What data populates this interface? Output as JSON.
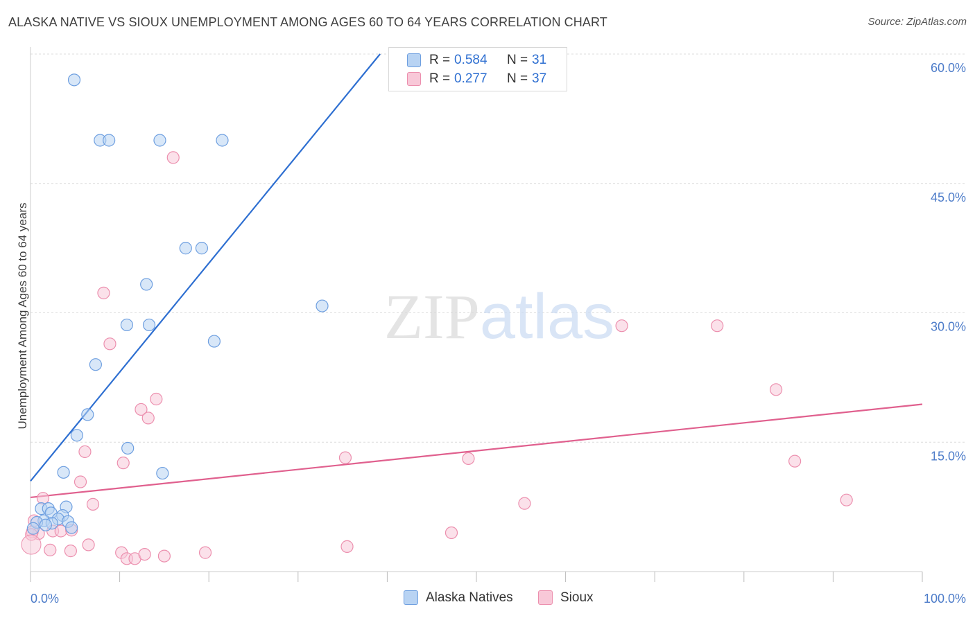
{
  "chart_data": {
    "type": "scatter",
    "title": "ALASKA NATIVE VS SIOUX UNEMPLOYMENT AMONG AGES 60 TO 64 YEARS CORRELATION CHART",
    "source": "Source: ZipAtlas.com",
    "ylabel": "Unemployment Among Ages 60 to 64 years",
    "xlabel": "",
    "xlim": [
      0,
      100
    ],
    "ylim": [
      0,
      60
    ],
    "x_tick_labels": [
      "0.0%",
      "100.0%"
    ],
    "y_tick_labels": [
      {
        "value": 15,
        "label": "15.0%"
      },
      {
        "value": 30,
        "label": "30.0%"
      },
      {
        "value": 45,
        "label": "45.0%"
      },
      {
        "value": 60,
        "label": "60.0%"
      }
    ],
    "watermark": "ZIPatlas",
    "legend": {
      "r_label": "R =",
      "n_label": "N =",
      "entries": [
        {
          "name": "Alaska Natives",
          "r": "0.584",
          "n": "31",
          "fill": "#b8d3f3",
          "stroke": "#6e9fe0",
          "line": "#2e6fd1"
        },
        {
          "name": "Sioux",
          "r": "0.277",
          "n": "37",
          "fill": "#f8c8d8",
          "stroke": "#ec8fae",
          "line": "#e0608e"
        }
      ]
    },
    "series": [
      {
        "name": "Alaska Natives",
        "trend": {
          "x": [
            0,
            39.2
          ],
          "y": [
            10.5,
            60
          ]
        },
        "points": [
          {
            "x": 4.9,
            "y": 57.0
          },
          {
            "x": 7.8,
            "y": 50.0
          },
          {
            "x": 8.8,
            "y": 50.0
          },
          {
            "x": 14.5,
            "y": 50.0
          },
          {
            "x": 21.5,
            "y": 50.0
          },
          {
            "x": 17.4,
            "y": 37.5
          },
          {
            "x": 19.2,
            "y": 37.5
          },
          {
            "x": 13.0,
            "y": 33.3
          },
          {
            "x": 32.7,
            "y": 30.8
          },
          {
            "x": 10.8,
            "y": 28.6
          },
          {
            "x": 13.3,
            "y": 28.6
          },
          {
            "x": 20.6,
            "y": 26.7
          },
          {
            "x": 7.3,
            "y": 24.0
          },
          {
            "x": 6.4,
            "y": 18.2
          },
          {
            "x": 5.2,
            "y": 15.8
          },
          {
            "x": 10.9,
            "y": 14.3
          },
          {
            "x": 3.7,
            "y": 11.5
          },
          {
            "x": 14.8,
            "y": 11.4
          },
          {
            "x": 1.2,
            "y": 7.3
          },
          {
            "x": 2.0,
            "y": 7.3
          },
          {
            "x": 4.0,
            "y": 7.5
          },
          {
            "x": 2.3,
            "y": 6.8
          },
          {
            "x": 3.6,
            "y": 6.5
          },
          {
            "x": 3.1,
            "y": 6.1
          },
          {
            "x": 1.5,
            "y": 5.9
          },
          {
            "x": 4.2,
            "y": 5.8
          },
          {
            "x": 0.7,
            "y": 5.7
          },
          {
            "x": 2.4,
            "y": 5.6
          },
          {
            "x": 1.7,
            "y": 5.4
          },
          {
            "x": 4.6,
            "y": 5.1
          },
          {
            "x": 0.3,
            "y": 5.0
          }
        ]
      },
      {
        "name": "Sioux",
        "trend": {
          "x": [
            0,
            100
          ],
          "y": [
            8.6,
            19.4
          ]
        },
        "points": [
          {
            "x": 16.0,
            "y": 48.0
          },
          {
            "x": 8.2,
            "y": 32.3
          },
          {
            "x": 8.9,
            "y": 26.4
          },
          {
            "x": 66.3,
            "y": 28.5
          },
          {
            "x": 77.0,
            "y": 28.5
          },
          {
            "x": 83.6,
            "y": 21.1
          },
          {
            "x": 14.1,
            "y": 20.0
          },
          {
            "x": 12.4,
            "y": 18.8
          },
          {
            "x": 13.2,
            "y": 17.8
          },
          {
            "x": 6.1,
            "y": 13.9
          },
          {
            "x": 35.3,
            "y": 13.2
          },
          {
            "x": 49.1,
            "y": 13.1
          },
          {
            "x": 85.7,
            "y": 12.8
          },
          {
            "x": 10.4,
            "y": 12.6
          },
          {
            "x": 5.6,
            "y": 10.4
          },
          {
            "x": 1.4,
            "y": 8.5
          },
          {
            "x": 91.5,
            "y": 8.3
          },
          {
            "x": 7.0,
            "y": 7.8
          },
          {
            "x": 55.4,
            "y": 7.9
          },
          {
            "x": 0.4,
            "y": 5.9
          },
          {
            "x": 2.5,
            "y": 4.7
          },
          {
            "x": 3.4,
            "y": 4.7
          },
          {
            "x": 4.6,
            "y": 4.8
          },
          {
            "x": 47.2,
            "y": 4.5
          },
          {
            "x": 0.9,
            "y": 4.4
          },
          {
            "x": 2.2,
            "y": 2.5
          },
          {
            "x": 4.5,
            "y": 2.4
          },
          {
            "x": 6.5,
            "y": 3.1
          },
          {
            "x": 35.5,
            "y": 2.9
          },
          {
            "x": 10.2,
            "y": 2.2
          },
          {
            "x": 10.8,
            "y": 1.5
          },
          {
            "x": 11.7,
            "y": 1.5
          },
          {
            "x": 12.8,
            "y": 2.0
          },
          {
            "x": 15.0,
            "y": 1.8
          },
          {
            "x": 19.6,
            "y": 2.2
          },
          {
            "x": 0.2,
            "y": 4.6
          },
          {
            "x": 0.1,
            "y": 4.3
          }
        ]
      }
    ]
  }
}
